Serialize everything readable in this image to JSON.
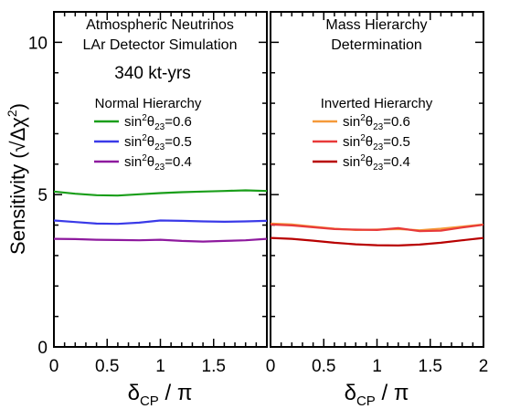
{
  "chart_data": [
    {
      "type": "line",
      "panel": "left",
      "title_lines": [
        "Atmospheric Neutrinos",
        "LAr Detector Simulation"
      ],
      "exposure": "340 kt-yrs",
      "legend_title": "Normal Hierarchy",
      "xlabel": "δ_CP / π",
      "ylabel": "Sensitivity (√Δχ²)",
      "xlim": [
        0,
        2
      ],
      "ylim": [
        0,
        11
      ],
      "x_ticks": [
        "0",
        "0.5",
        "1",
        "1.5"
      ],
      "y_ticks": [
        "0",
        "5",
        "10"
      ],
      "x": [
        0,
        0.2,
        0.4,
        0.6,
        0.8,
        1.0,
        1.2,
        1.4,
        1.6,
        1.8,
        2.0
      ],
      "series": [
        {
          "label_prefix": "sin",
          "label_sup": "2",
          "label_sym": "θ",
          "label_sub": "23",
          "label_value": "=0.6",
          "color": "#1a9e1a",
          "values": [
            5.1,
            5.03,
            4.98,
            4.97,
            5.01,
            5.05,
            5.08,
            5.1,
            5.12,
            5.14,
            5.12
          ]
        },
        {
          "label_prefix": "sin",
          "label_sup": "2",
          "label_sym": "θ",
          "label_sub": "23",
          "label_value": "=0.5",
          "color": "#3a3ae8",
          "values": [
            4.15,
            4.1,
            4.05,
            4.04,
            4.08,
            4.15,
            4.14,
            4.12,
            4.11,
            4.12,
            4.14
          ]
        },
        {
          "label_prefix": "sin",
          "label_sup": "2",
          "label_sym": "θ",
          "label_sub": "23",
          "label_value": "=0.4",
          "color": "#8e1a9e",
          "values": [
            3.55,
            3.54,
            3.52,
            3.51,
            3.5,
            3.52,
            3.48,
            3.46,
            3.48,
            3.5,
            3.55
          ]
        }
      ]
    },
    {
      "type": "line",
      "panel": "right",
      "title_lines": [
        "Mass Hierarchy",
        "Determination"
      ],
      "legend_title": "Inverted Hierarchy",
      "xlabel": "δ_CP / π",
      "xlim": [
        0,
        2
      ],
      "ylim": [
        0,
        11
      ],
      "x_ticks": [
        "0",
        "0.5",
        "1",
        "1.5",
        "2"
      ],
      "x": [
        0,
        0.2,
        0.4,
        0.6,
        0.8,
        1.0,
        1.2,
        1.4,
        1.6,
        1.8,
        2.0
      ],
      "series": [
        {
          "label_prefix": "sin",
          "label_sup": "2",
          "label_sym": "θ",
          "label_sub": "23",
          "label_value": "=0.6",
          "color": "#f59a3a",
          "values": [
            4.05,
            4.02,
            3.95,
            3.88,
            3.84,
            3.85,
            3.87,
            3.83,
            3.88,
            3.95,
            4.02
          ]
        },
        {
          "label_prefix": "sin",
          "label_sup": "2",
          "label_sym": "θ",
          "label_sub": "23",
          "label_value": "=0.5",
          "color": "#e83a3a",
          "values": [
            4.02,
            3.99,
            3.93,
            3.87,
            3.85,
            3.84,
            3.9,
            3.8,
            3.82,
            3.92,
            4.01
          ]
        },
        {
          "label_prefix": "sin",
          "label_sup": "2",
          "label_sym": "θ",
          "label_sub": "23",
          "label_value": "=0.4",
          "color": "#b80000",
          "values": [
            3.58,
            3.55,
            3.49,
            3.42,
            3.37,
            3.34,
            3.33,
            3.36,
            3.42,
            3.5,
            3.58
          ]
        }
      ]
    }
  ]
}
